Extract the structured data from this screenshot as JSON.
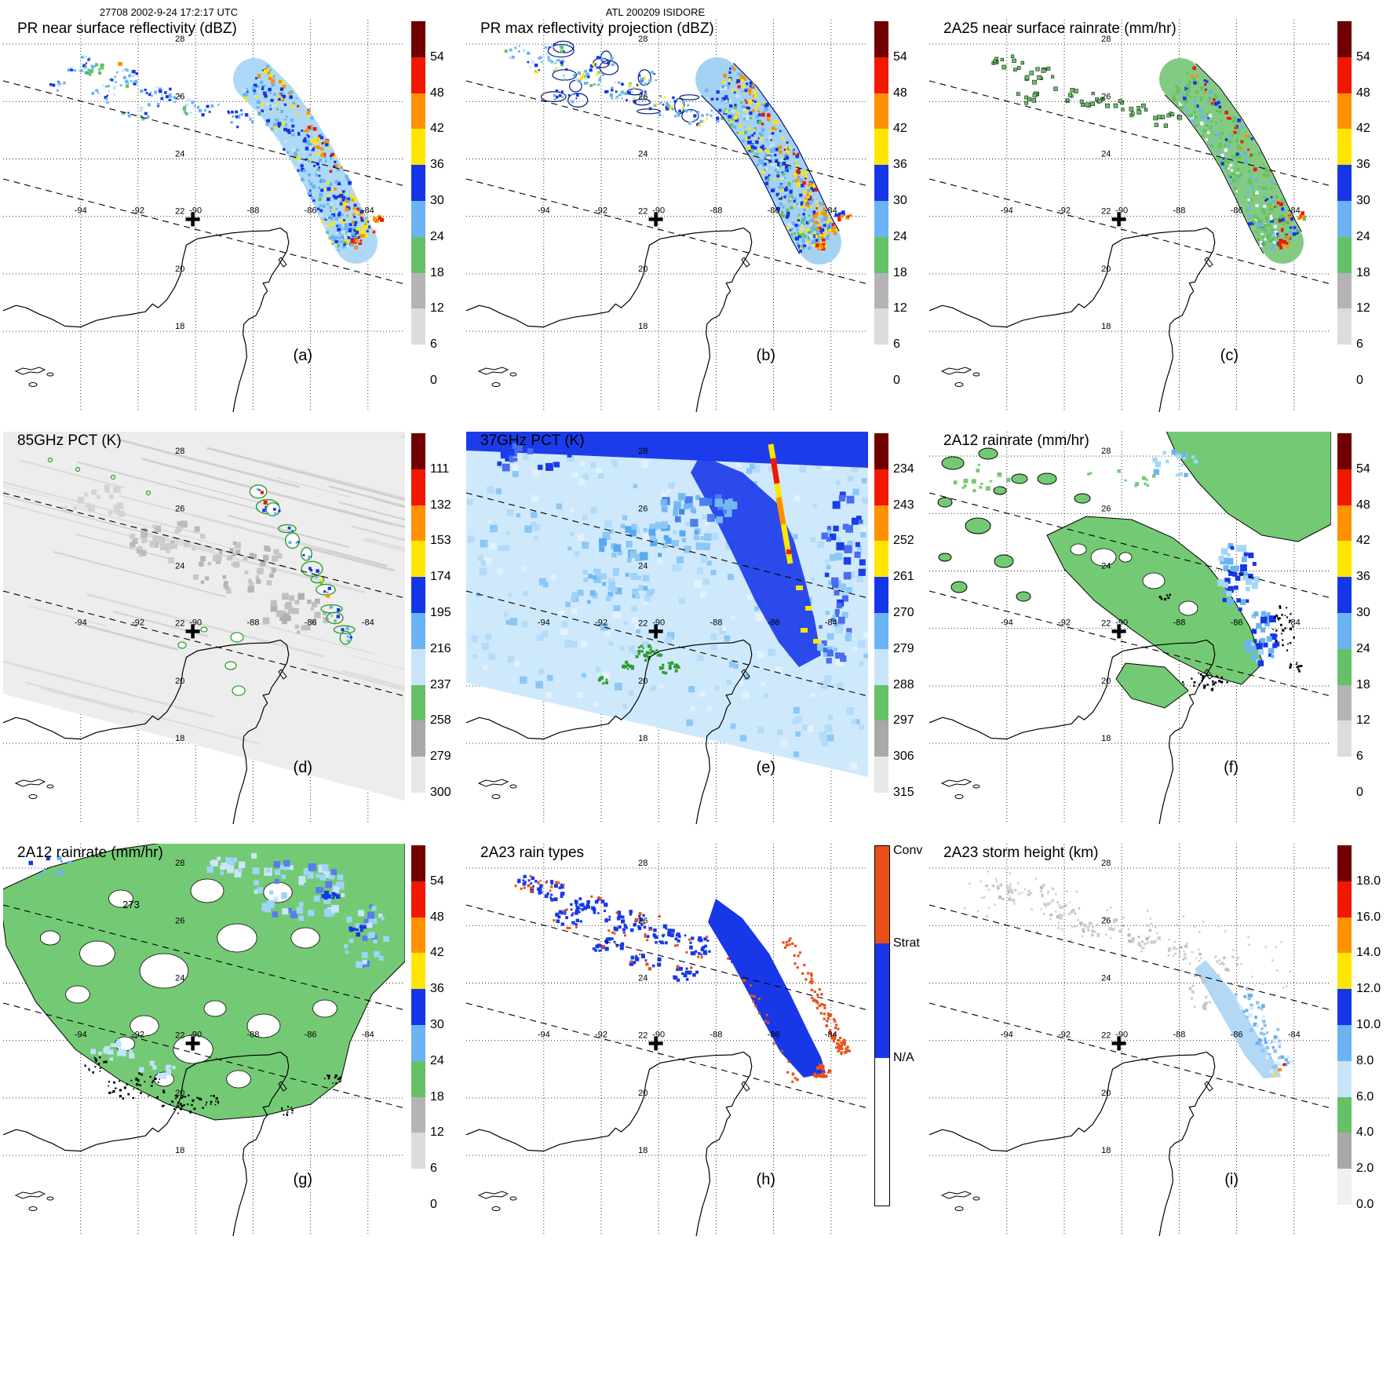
{
  "header": {
    "left": "27708 2002-9-24 17:2:17 UTC",
    "center": "ATL 200209 ISIDORE"
  },
  "geo": {
    "lon_ticks": [
      -94,
      -92,
      -90,
      -88,
      -86,
      -84
    ],
    "lat_ticks": [
      28,
      26,
      24,
      22,
      20,
      18
    ],
    "lon_label_latitude": 22,
    "lat_label_longitude": -90,
    "storm_center_lonlat": [
      -90.1,
      21.9
    ]
  },
  "colors": {
    "maroon": "#700000",
    "red": "#f01800",
    "orange": "#ff9000",
    "yellow": "#ffe600",
    "blue": "#1436e8",
    "lightblue": "#6ab4f4",
    "paleblue": "#c8e4f8",
    "green": "#66c166",
    "gray": "#b4b4b4",
    "lightgray": "#dcdcdc",
    "white": "#ffffff",
    "navy": "#001878",
    "conv": "#e85018",
    "strat": "#1838e8",
    "bandbase": "#a9d7f5",
    "scales": {
      "dbz": [
        "#700000",
        "#f01800",
        "#ff9000",
        "#ffe600",
        "#1436e8",
        "#6ab4f4",
        "#66c166",
        "#b4b4b4",
        "#dcdcdc",
        "#ffffff"
      ],
      "pct": [
        "#700000",
        "#f01800",
        "#ff9000",
        "#ffe600",
        "#1436e8",
        "#6ab4f4",
        "#c8e4f8",
        "#66c166",
        "#a8a8a8",
        "#e8e8e8"
      ],
      "height": [
        "#700000",
        "#f01800",
        "#ff9000",
        "#ffe600",
        "#1436e8",
        "#6ab4f4",
        "#c8e4f8",
        "#66c166",
        "#a8a8a8",
        "#f0f0f0"
      ]
    }
  },
  "panels": [
    {
      "id": "a",
      "title": "PR near surface reflectivity (dBZ)",
      "tag": "(a)",
      "style": "pr_z_a",
      "colorbar": {
        "type": "dbz",
        "ticks": [
          "54",
          "48",
          "42",
          "36",
          "30",
          "24",
          "18",
          "12",
          "6",
          "0"
        ]
      }
    },
    {
      "id": "b",
      "title": "PR max reflectivity projection (dBZ)",
      "tag": "(b)",
      "style": "pr_z_b",
      "colorbar": {
        "type": "dbz",
        "ticks": [
          "54",
          "48",
          "42",
          "36",
          "30",
          "24",
          "18",
          "12",
          "6",
          "0"
        ]
      }
    },
    {
      "id": "c",
      "title": "2A25 near surface rainrate (mm/hr)",
      "tag": "(c)",
      "style": "rain_a25",
      "colorbar": {
        "type": "dbz",
        "ticks": [
          "54",
          "48",
          "42",
          "36",
          "30",
          "24",
          "18",
          "12",
          "6",
          "0"
        ]
      }
    },
    {
      "id": "d",
      "title": "85GHz PCT (K)",
      "tag": "(d)",
      "style": "pct85",
      "colorbar": {
        "type": "pct",
        "ticks": [
          "111",
          "132",
          "153",
          "174",
          "195",
          "216",
          "237",
          "258",
          "279",
          "300"
        ]
      }
    },
    {
      "id": "e",
      "title": "37GHz PCT (K)",
      "tag": "(e)",
      "style": "pct37",
      "colorbar": {
        "type": "pct",
        "ticks": [
          "234",
          "243",
          "252",
          "261",
          "270",
          "279",
          "288",
          "297",
          "306",
          "315"
        ]
      }
    },
    {
      "id": "f",
      "title": "2A12 rainrate (mm/hr)",
      "tag": "(f)",
      "style": "tmi_rain_f",
      "colorbar": {
        "type": "dbz",
        "ticks": [
          "54",
          "48",
          "42",
          "36",
          "30",
          "24",
          "18",
          "12",
          "6",
          "0"
        ]
      }
    },
    {
      "id": "g",
      "title": "2A12 rainrate (mm/hr)",
      "tag": "(g)",
      "style": "tmi_rain_g",
      "annotation": "273",
      "colorbar": {
        "type": "dbz",
        "ticks": [
          "54",
          "48",
          "42",
          "36",
          "30",
          "24",
          "18",
          "12",
          "6",
          "0"
        ]
      }
    },
    {
      "id": "h",
      "title": "2A23 rain types",
      "tag": "(h)",
      "style": "raintype",
      "colorbar": {
        "type": "raintype",
        "ticks": [
          "Conv",
          "Strat",
          "N/A"
        ]
      }
    },
    {
      "id": "i",
      "title": "2A23 storm height (km)",
      "tag": "(i)",
      "style": "stormht",
      "colorbar": {
        "type": "height",
        "ticks": [
          "18.0",
          "16.0",
          "14.0",
          "12.0",
          "10.0",
          "8.0",
          "6.0",
          "4.0",
          "2.0",
          "0.0"
        ]
      }
    }
  ],
  "chart_data": [
    {
      "panel": "a",
      "type": "heatmap",
      "title": "PR near surface reflectivity (dBZ)",
      "units": "dBZ",
      "colorbar_ticks": [
        0,
        6,
        12,
        18,
        24,
        30,
        36,
        42,
        48,
        54
      ],
      "lon_ticks": [
        -94,
        -92,
        -90,
        -88,
        -86,
        -84
      ],
      "lat_ticks": [
        18,
        20,
        22,
        24,
        26,
        28
      ],
      "grid": "dotted",
      "features": "Scattered 18-30 dBZ echoes along NW part of narrow PR swath (between dashed edges); curved convective band with 36-54 dBZ cores east of Yucatan from about (-87.5,26.2) to (-84.3,21.4); bold cross marks storm center near (-90,22)."
    },
    {
      "panel": "b",
      "type": "heatmap",
      "title": "PR max reflectivity projection (dBZ)",
      "units": "dBZ",
      "colorbar_ticks": [
        0,
        6,
        12,
        18,
        24,
        30,
        36,
        42,
        48,
        54
      ],
      "lon_ticks": [
        -94,
        -92,
        -90,
        -88,
        -86,
        -84
      ],
      "lat_ticks": [
        18,
        20,
        22,
        24,
        26,
        28
      ],
      "grid": "dotted",
      "features": "Column-maximum projection of the same echoes: larger coverage, dark-navy cell outlines, much more 36-54 dBZ (yellow/orange) in the main band."
    },
    {
      "panel": "c",
      "type": "heatmap",
      "title": "2A25 near surface rainrate (mm/hr)",
      "units": "mm/hr",
      "colorbar_ticks": [
        0,
        6,
        12,
        18,
        24,
        30,
        36,
        42,
        48,
        54
      ],
      "lon_ticks": [
        -94,
        -92,
        -90,
        -88,
        -86,
        -84
      ],
      "lat_ticks": [
        18,
        20,
        22,
        24,
        26,
        28
      ],
      "grid": "dotted",
      "features": "Rain areas mostly light (green, lower bins) outlined in black, matching PR echoes; embedded heavier blue/red cells inside the main band."
    },
    {
      "panel": "d",
      "type": "heatmap",
      "title": "85GHz PCT (K)",
      "units": "K",
      "colorbar_ticks": [
        111,
        132,
        153,
        174,
        195,
        216,
        237,
        258,
        279,
        300
      ],
      "lon_ticks": [
        -94,
        -92,
        -90,
        -88,
        -86,
        -84
      ],
      "lat_ticks": [
        18,
        20,
        22,
        24,
        26,
        28
      ],
      "grid": "dotted",
      "features": "Wide TMI swath with warm 280-300 K (light gray) background and along-track streak texture; strongly depressed PCT cells (blue/red) with green ~237 K outlines along the convective band; small green-outlined cells near (-88.5,20.5)."
    },
    {
      "panel": "e",
      "type": "heatmap",
      "title": "37GHz PCT (K)",
      "units": "K",
      "colorbar_ticks": [
        234,
        243,
        252,
        261,
        270,
        279,
        288,
        297,
        306,
        315
      ],
      "lon_ticks": [
        -94,
        -92,
        -90,
        -88,
        -86,
        -84
      ],
      "lat_ticks": [
        18,
        20,
        22,
        24,
        26,
        28
      ],
      "grid": "dotted",
      "features": "Broad 270-288 K (light blue) field over the swath; deep-blue <261 K region along the storm; yellow/orange/red streak of strongly depressed PCT along the leading convective line; green ~288 K speckles over NW Yucatan near (-90.3,21.2)."
    },
    {
      "panel": "f",
      "type": "heatmap",
      "title": "2A12 rainrate (mm/hr)",
      "units": "mm/hr",
      "colorbar_ticks": [
        0,
        6,
        12,
        18,
        24,
        30,
        36,
        42,
        48,
        54
      ],
      "lon_ticks": [
        -94,
        -92,
        -90,
        -88,
        -86,
        -84
      ],
      "lat_ticks": [
        18,
        20,
        22,
        24,
        26,
        28
      ],
      "grid": "dotted",
      "features": "Widespread light rain (green, 0-6 mm/hr) over the TMI swath with black region contours; 18-36 mm/hr blue patches in the band; dense black stippling near the band's south end."
    },
    {
      "panel": "g",
      "type": "heatmap",
      "title": "2A12 rainrate (mm/hr)",
      "units": "mm/hr",
      "annotation": "273",
      "colorbar_ticks": [
        0,
        6,
        12,
        18,
        24,
        30,
        36,
        42,
        48,
        54
      ],
      "lon_ticks": [
        -94,
        -92,
        -90,
        -88,
        -86,
        -84
      ],
      "lat_ticks": [
        18,
        20,
        22,
        24,
        26,
        28
      ],
      "grid": "dotted",
      "features": "Second 2A12 view with a much larger contiguous rain shield (green) containing white holes; light-blue areas to the NE; dense black stippling SW of the storm center; contour label 273 near (-92.3,26.6)."
    },
    {
      "panel": "h",
      "type": "categorical-map",
      "title": "2A23 rain types",
      "categories": [
        "Conv",
        "Strat",
        "N/A"
      ],
      "lon_ticks": [
        -94,
        -92,
        -90,
        -88,
        -86,
        -84
      ],
      "lat_ticks": [
        18,
        20,
        22,
        24,
        26,
        28
      ],
      "grid": "dotted",
      "features": "Stratiform (blue) dominates all echo regions; convective (orange) pixels fringe the edges of the NW cells and the east side and southern tip of the main band."
    },
    {
      "panel": "i",
      "type": "heatmap",
      "title": "2A23 storm height (km)",
      "units": "km",
      "colorbar_ticks": [
        0,
        2,
        4,
        6,
        8,
        10,
        12,
        14,
        16,
        18
      ],
      "lon_ticks": [
        -94,
        -92,
        -90,
        -88,
        -86,
        -84
      ],
      "lat_ticks": [
        18,
        20,
        22,
        24,
        26,
        28
      ],
      "grid": "dotted",
      "features": "Storm heights mostly 2-6 km (gray speckles) in the NW echoes; 8-12 km (light blue) along the main band; isolated higher yellow/orange tops at the band's southern tip near (-84.4,21.3)."
    }
  ]
}
